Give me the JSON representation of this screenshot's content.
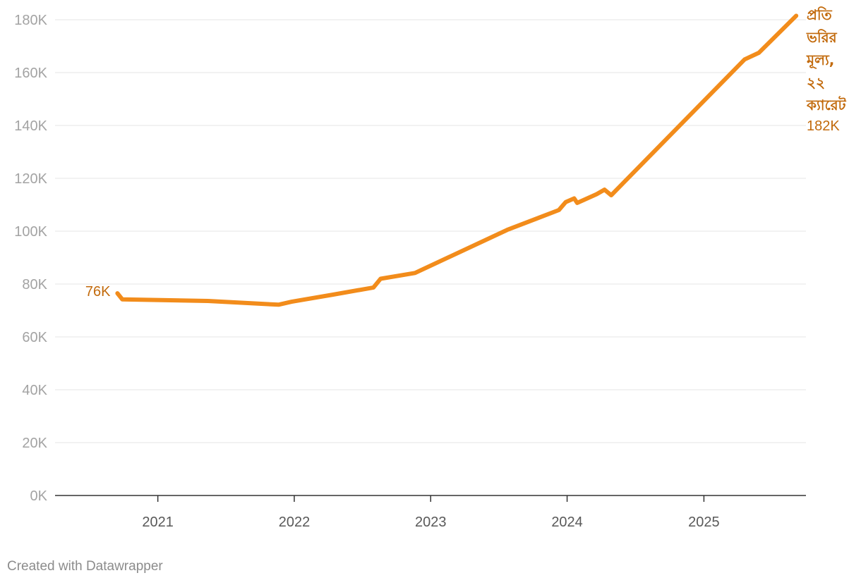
{
  "chart_data": {
    "type": "line",
    "title": "",
    "xlabel": "",
    "ylabel": "",
    "ylim": [
      0,
      180000
    ],
    "xlim": [
      "2020-04-01",
      "2025-10-01"
    ],
    "y_ticks": [
      {
        "value": 0,
        "label": "0K"
      },
      {
        "value": 20000,
        "label": "20K"
      },
      {
        "value": 40000,
        "label": "40K"
      },
      {
        "value": 60000,
        "label": "60K"
      },
      {
        "value": 80000,
        "label": "80K"
      },
      {
        "value": 100000,
        "label": "100K"
      },
      {
        "value": 120000,
        "label": "120K"
      },
      {
        "value": 140000,
        "label": "140K"
      },
      {
        "value": 160000,
        "label": "160K"
      },
      {
        "value": 180000,
        "label": "180K"
      }
    ],
    "x_ticks": [
      {
        "date": "2021-01-01",
        "label": "2021"
      },
      {
        "date": "2022-01-01",
        "label": "2022"
      },
      {
        "date": "2023-01-01",
        "label": "2023"
      },
      {
        "date": "2024-01-01",
        "label": "2024"
      },
      {
        "date": "2025-01-01",
        "label": "2025"
      }
    ],
    "grid": true,
    "series": [
      {
        "name": "প্রতি ভরির মূল্য, ২২ ক্যারেট",
        "name_lines": [
          "প্রতি",
          "ভরির",
          "মূল্য,",
          "২২",
          "ক্যারেট"
        ],
        "color": "#f28c1b",
        "label_color": "#c26a0c",
        "start_label": "76K",
        "end_label": "182K",
        "points": [
          {
            "date": "2020-09-15",
            "value": 76500
          },
          {
            "date": "2020-09-28",
            "value": 74200
          },
          {
            "date": "2021-05-15",
            "value": 73600
          },
          {
            "date": "2021-11-20",
            "value": 72200
          },
          {
            "date": "2021-12-25",
            "value": 73300
          },
          {
            "date": "2022-04-15",
            "value": 76000
          },
          {
            "date": "2022-08-01",
            "value": 78700
          },
          {
            "date": "2022-08-20",
            "value": 82000
          },
          {
            "date": "2022-11-20",
            "value": 84200
          },
          {
            "date": "2023-07-25",
            "value": 100500
          },
          {
            "date": "2023-12-10",
            "value": 108000
          },
          {
            "date": "2023-12-28",
            "value": 111000
          },
          {
            "date": "2024-01-20",
            "value": 112400
          },
          {
            "date": "2024-01-28",
            "value": 110700
          },
          {
            "date": "2024-03-20",
            "value": 114000
          },
          {
            "date": "2024-04-10",
            "value": 115700
          },
          {
            "date": "2024-04-28",
            "value": 113600
          },
          {
            "date": "2025-04-20",
            "value": 165000
          },
          {
            "date": "2025-05-28",
            "value": 167500
          },
          {
            "date": "2025-09-05",
            "value": 181500
          }
        ]
      }
    ]
  },
  "footer": {
    "credit": "Created with Datawrapper"
  }
}
